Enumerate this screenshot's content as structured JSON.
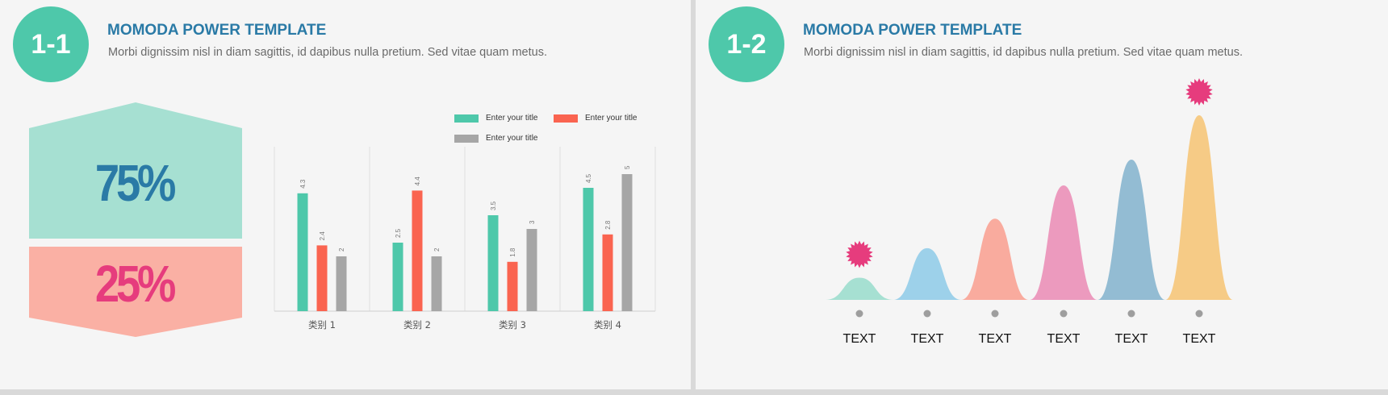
{
  "slides": [
    {
      "badge": "1-1",
      "title": "MOMODA POWER TEMPLATE",
      "subtitle": "Morbi dignissim nisl in diam sagittis, id dapibus nulla pretium. Sed vitae quam metus.",
      "top_percent": "75%",
      "bottom_percent": "25%"
    },
    {
      "badge": "1-2",
      "title": "MOMODA POWER TEMPLATE",
      "subtitle": "Morbi dignissim nisl in diam sagittis, id dapibus nulla pretium. Sed vitae quam metus."
    }
  ],
  "colors": {
    "teal": "#4ec8aa",
    "red": "#fa6450",
    "gray": "#a6a6a6",
    "title_blue": "#2a7aa6",
    "pink": "#e63c7d"
  },
  "chart_data": {
    "type": "bar",
    "categories": [
      "类别 1",
      "类别 2",
      "类别 3",
      "类别 4"
    ],
    "series": [
      {
        "name": "Enter your title",
        "color": "#4ec8aa",
        "values": [
          4.3,
          2.5,
          3.5,
          4.5
        ]
      },
      {
        "name": "Enter your title",
        "color": "#fa6450",
        "values": [
          2.4,
          4.4,
          1.8,
          2.8
        ]
      },
      {
        "name": "Enter your title",
        "color": "#a6a6a6",
        "values": [
          2,
          2,
          3,
          5
        ]
      }
    ],
    "ylim": [
      0,
      6
    ],
    "legend": "top-right",
    "grid": "vertical"
  },
  "timeline": {
    "items": [
      {
        "label": "TEXT",
        "level": 0.12,
        "color": "#a6e0d2"
      },
      {
        "label": "TEXT",
        "level": 0.28,
        "color": "#9dd1ea"
      },
      {
        "label": "TEXT",
        "level": 0.44,
        "color": "#f9ab9e"
      },
      {
        "label": "TEXT",
        "level": 0.62,
        "color": "#ec9abe"
      },
      {
        "label": "TEXT",
        "level": 0.76,
        "color": "#93bcd3"
      },
      {
        "label": "TEXT",
        "level": 1.0,
        "color": "#f6cb86"
      }
    ],
    "highlights": [
      0,
      5
    ],
    "highlight_color": "#e63c7d"
  }
}
